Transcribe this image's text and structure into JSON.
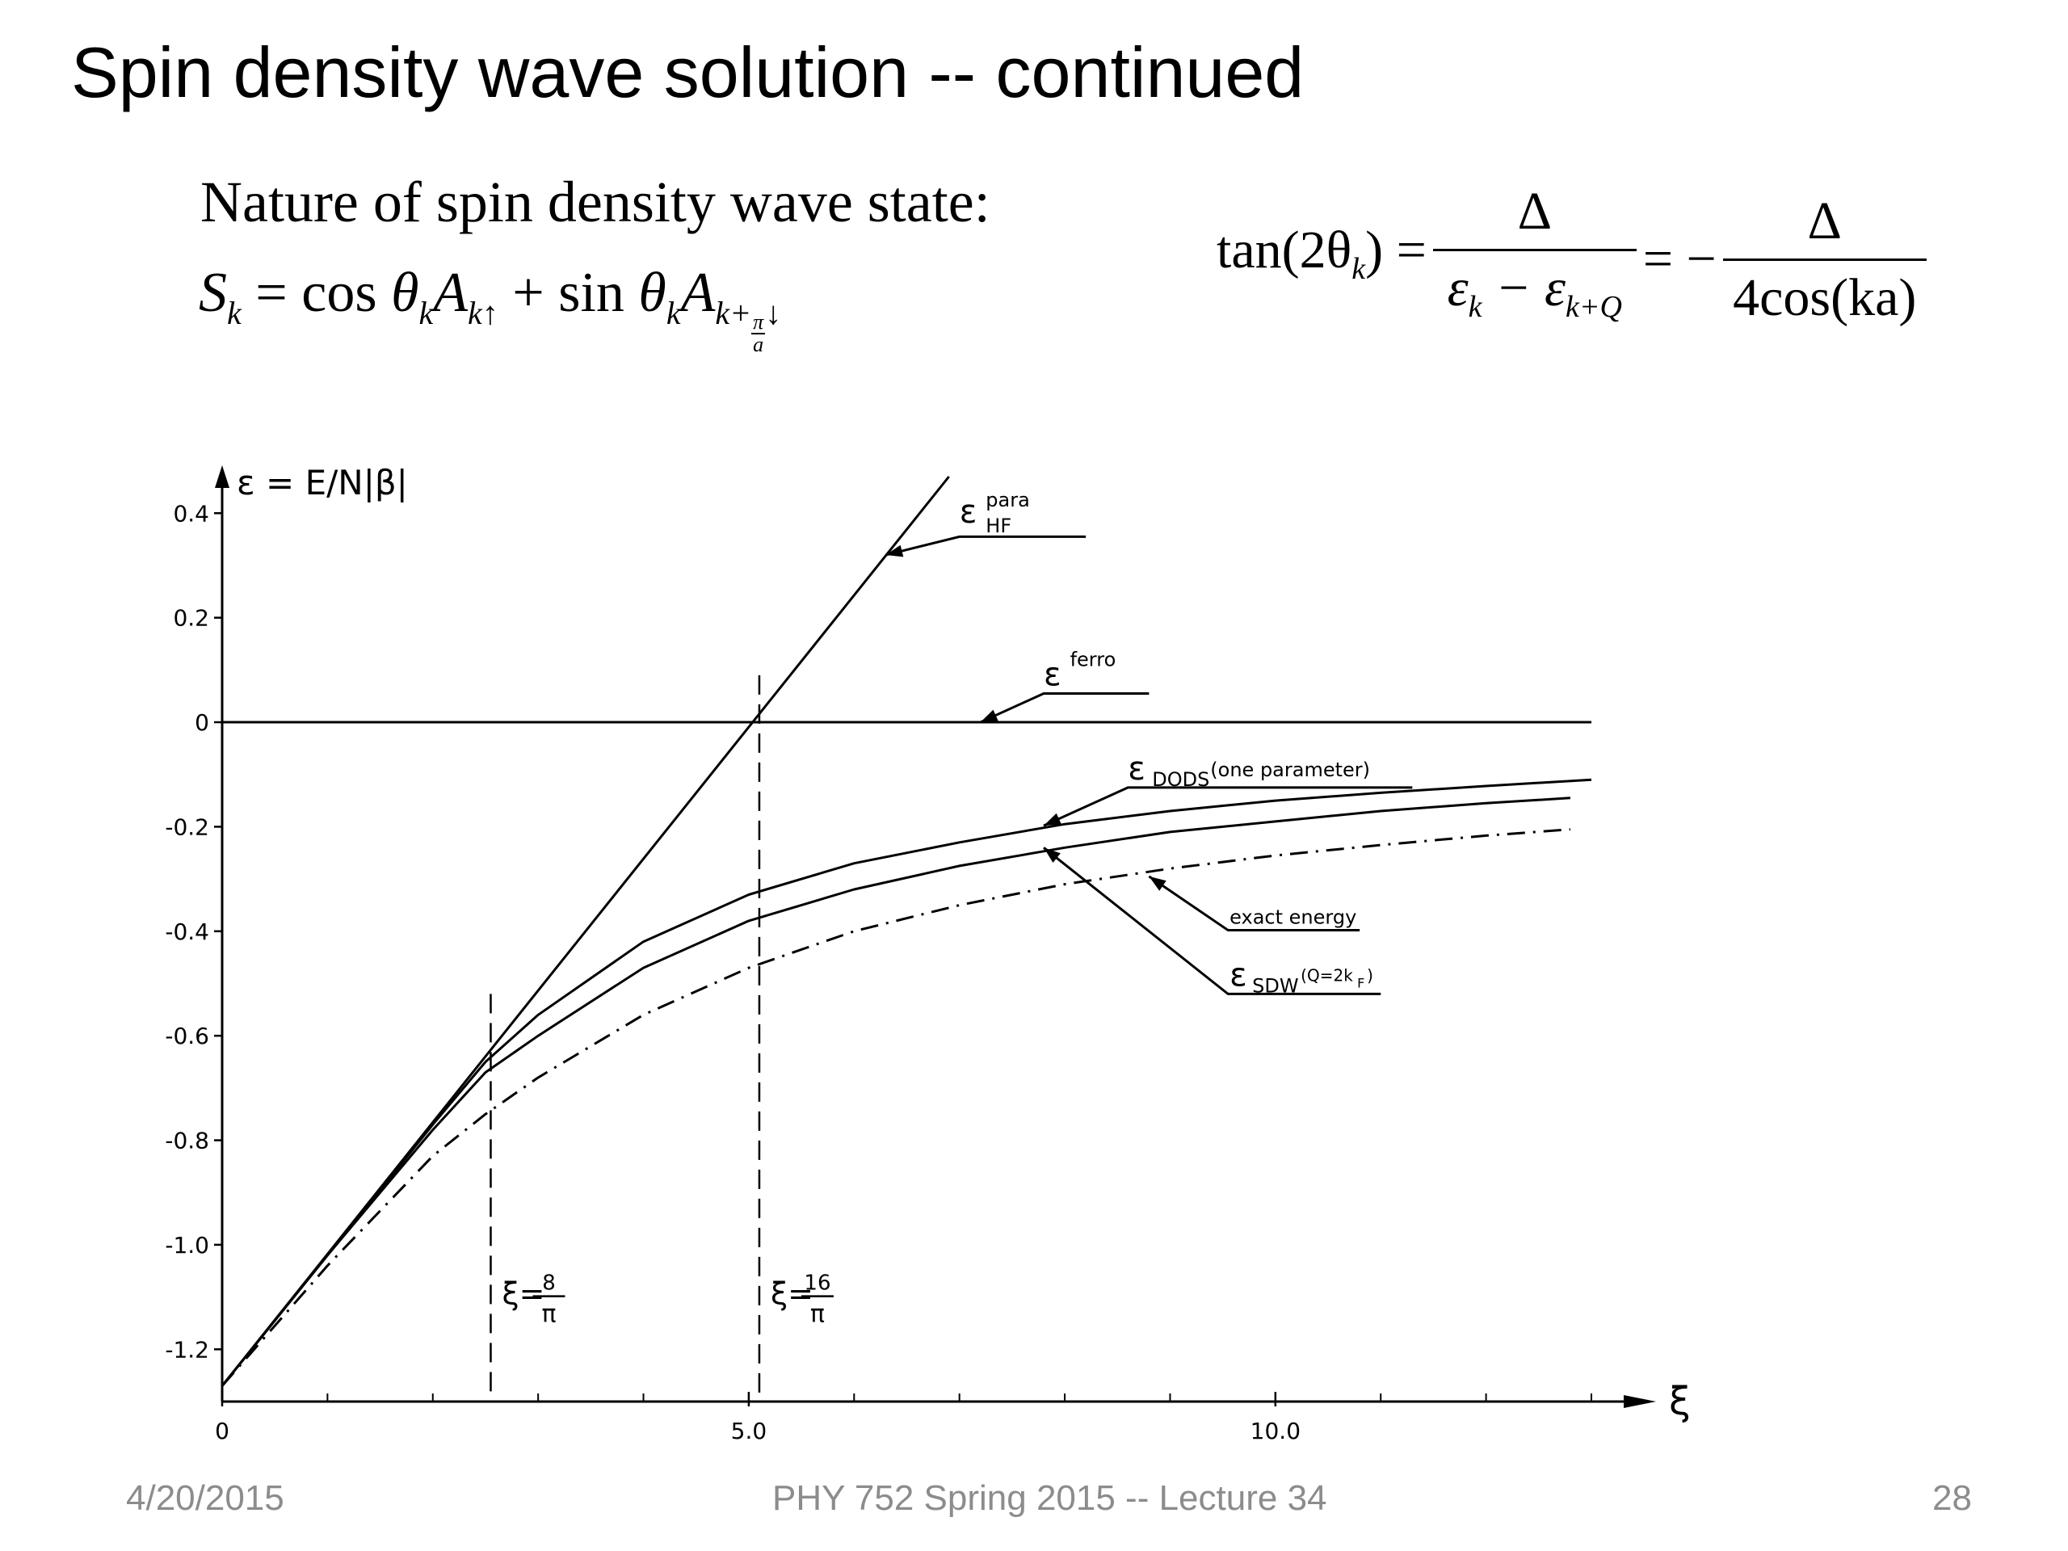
{
  "slide": {
    "title": "Spin density wave solution -- continued",
    "subtitle": "Nature of spin density wave state:",
    "footer_date": "4/20/2015",
    "footer_course": "PHY 752  Spring 2015 -- Lecture 34",
    "footer_page": "28"
  },
  "equations": {
    "s_lhs": "S",
    "s_lhs_sub": "k",
    "s_eq": " = cos ",
    "theta": "θ",
    "theta_sub": "k",
    "a1": "A",
    "a1_sub": "k↑",
    "s_plus": " + sin ",
    "theta2": "θ",
    "theta2_sub": "k",
    "a2": "A",
    "a2_sub_pre": "k+",
    "a2_frac_num": "π",
    "a2_frac_den": "a",
    "a2_sub_post": "↓",
    "tan_lhs": "tan(2θ",
    "tan_lhs_sub": "k",
    "tan_close": ") =",
    "frac1_num": "Δ",
    "frac1_den_a": "ε",
    "frac1_den_a_sub": "k",
    "frac1_den_minus": " − ε",
    "frac1_den_b_sub": "k+Q",
    "neg_eq": "= −",
    "frac2_num": "Δ",
    "frac2_den": "4cos(ka)"
  },
  "chart_data": {
    "type": "line",
    "ylabel": "ε = E/N|β|",
    "xlabel": "ξ",
    "xlim": [
      0,
      13
    ],
    "ylim": [
      -1.3,
      0.47
    ],
    "x_ticks": [
      {
        "value": 0,
        "label": "0"
      },
      {
        "value": 5,
        "label": "5.0"
      },
      {
        "value": 10,
        "label": "10.0"
      }
    ],
    "x_minor_ticks": [
      1,
      2,
      3,
      4,
      6,
      7,
      8,
      9,
      11,
      12,
      13
    ],
    "y_ticks": [
      {
        "value": 0.4,
        "label": "0.4"
      },
      {
        "value": 0.2,
        "label": "0.2"
      },
      {
        "value": 0,
        "label": "0"
      },
      {
        "value": -0.2,
        "label": "-0.2"
      },
      {
        "value": -0.4,
        "label": "-0.4"
      },
      {
        "value": -0.6,
        "label": "-0.6"
      },
      {
        "value": -0.8,
        "label": "-0.8"
      },
      {
        "value": -1.0,
        "label": "-1.0"
      },
      {
        "value": -1.2,
        "label": "-1.2"
      }
    ],
    "series": [
      {
        "name": "ε HF para",
        "style": "solid",
        "x": [
          0,
          6.9
        ],
        "y": [
          -1.27,
          0.47
        ]
      },
      {
        "name": "ε ferro",
        "style": "solid",
        "x": [
          0,
          13
        ],
        "y": [
          0,
          0
        ]
      },
      {
        "name": "ε DODS (one parameter)",
        "style": "solid",
        "x": [
          0,
          1,
          2,
          2.5,
          3,
          4,
          5,
          6,
          7,
          8,
          9,
          10,
          11,
          12,
          13
        ],
        "y": [
          -1.27,
          -1.02,
          -0.77,
          -0.65,
          -0.56,
          -0.42,
          -0.33,
          -0.27,
          -0.23,
          -0.195,
          -0.17,
          -0.15,
          -0.135,
          -0.122,
          -0.11
        ]
      },
      {
        "name": "ε SDW (Q = 2kF)",
        "style": "solid",
        "x": [
          0,
          1,
          2,
          2.5,
          3,
          4,
          5,
          6,
          7,
          8,
          9,
          10,
          11,
          12,
          12.8
        ],
        "y": [
          -1.27,
          -1.02,
          -0.78,
          -0.67,
          -0.6,
          -0.47,
          -0.38,
          -0.32,
          -0.275,
          -0.24,
          -0.21,
          -0.19,
          -0.17,
          -0.155,
          -0.145
        ]
      },
      {
        "name": "exact energy",
        "style": "dashdot",
        "x": [
          0,
          1,
          2,
          2.5,
          3,
          4,
          5,
          6,
          7,
          8,
          9,
          10,
          11,
          12,
          12.8
        ],
        "y": [
          -1.27,
          -1.04,
          -0.83,
          -0.75,
          -0.68,
          -0.56,
          -0.47,
          -0.4,
          -0.35,
          -0.31,
          -0.28,
          -0.255,
          -0.235,
          -0.217,
          -0.205
        ]
      }
    ],
    "vlines": [
      {
        "x": 2.55,
        "label": "ξ = 8/π",
        "num": "8",
        "den": "π",
        "y_top": -0.52
      },
      {
        "x": 5.1,
        "label": "ξ = 16/π",
        "num": "16",
        "den": "π",
        "y_top": 0.09
      }
    ],
    "annotations": [
      {
        "series": "ε HF para",
        "main": "ε",
        "sup": "para",
        "sub": "HF"
      },
      {
        "series": "ε ferro",
        "main": "ε",
        "sup": "ferro",
        "sub": ""
      },
      {
        "series": "ε DODS (one parameter)",
        "main": "ε",
        "sub": "DODS",
        "extra": "(one parameter)"
      },
      {
        "series": "exact energy",
        "main": "exact energy"
      },
      {
        "series": "ε SDW (Q = 2kF)",
        "main": "ε",
        "sub": "SDW",
        "extra": "(Q=2k",
        "extra_sub": "F",
        "extra_close": ")"
      }
    ]
  }
}
